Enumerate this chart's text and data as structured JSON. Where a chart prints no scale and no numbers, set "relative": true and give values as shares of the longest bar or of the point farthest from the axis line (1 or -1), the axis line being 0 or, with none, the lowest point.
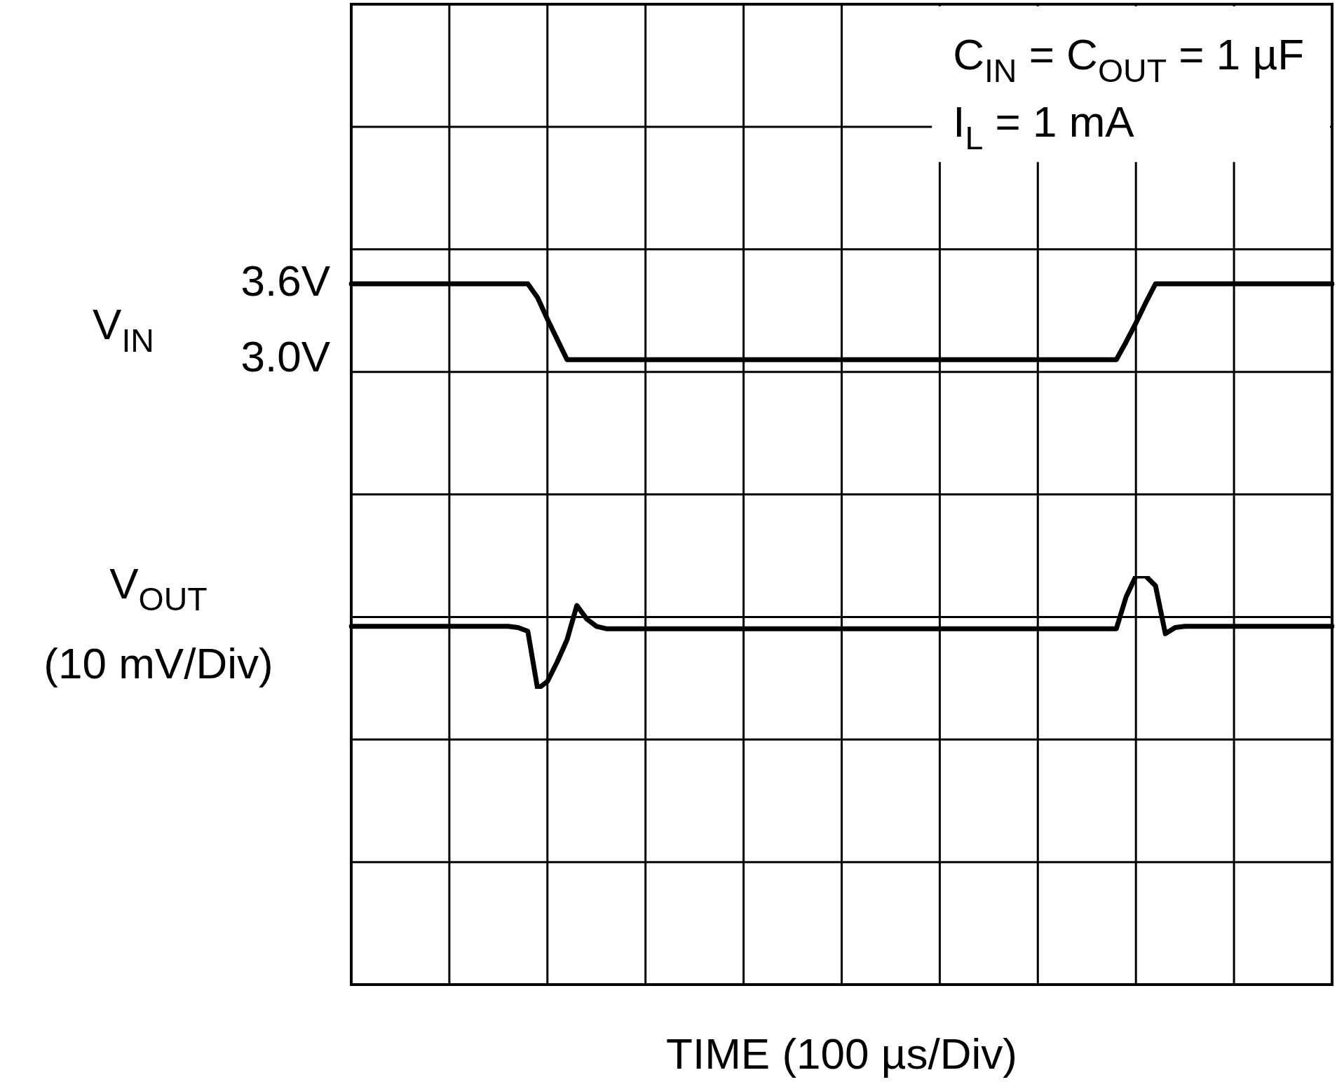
{
  "chart_data": [
    {
      "type": "line",
      "xlabel": "TIME (100 µs/Div)",
      "ylabel": "V$_{IN}$",
      "annotations": [
        "C$_{IN}$ = C$_{OUT}$ = 1 µF",
        "I$_{L}$ = 1 mA"
      ],
      "categories": [
        null,
        null,
        null,
        null,
        null,
        null,
        null,
        null,
        null,
        null,
        null,
        null,
        null,
        null,
        null,
        null,
        null,
        null,
        null,
        null,
        null,
        null,
        null,
        null,
        null,
        null,
        null,
        null,
        null,
        null,
        null,
        null,
        null,
        null,
        null,
        null,
        null,
        null,
        null,
        null,
        null,
        null,
        null,
        null,
        null,
        null,
        null,
        null,
        null,
        null,
        null,
        null,
        null,
        null,
        null,
        null,
        null,
        null,
        null,
        null,
        null,
        null,
        null,
        null,
        null,
        null,
        null,
        null,
        null,
        null,
        null,
        null,
        null,
        null,
        null,
        null,
        null,
        null,
        null,
        null,
        null,
        null,
        null,
        null,
        null,
        null,
        null,
        null,
        null,
        null,
        null,
        null,
        null,
        null,
        null,
        null,
        null,
        null,
        null,
        null,
        null
      ],
      "ylim": [
        -1.94,
        5.81
      ],
      "yticks": [
        {
          "value": 3.0,
          "label": "3.0V"
        },
        {
          "value": 3.6,
          "label": "3.6V"
        }
      ],
      "grid": true,
      "tick_labels": "y",
      "series": [
        {
          "color": "#000000",
          "values": [
            3.6,
            3.6,
            3.6,
            3.6,
            3.6,
            3.6,
            3.6,
            3.6,
            3.6,
            3.6,
            3.6,
            3.6,
            3.6,
            3.6,
            3.6,
            3.6,
            3.6,
            3.6,
            3.6,
            3.49,
            3.32,
            3.16,
            3.0,
            3.0,
            3.0,
            3.0,
            3.0,
            3.0,
            3.0,
            3.0,
            3.0,
            3.0,
            3.0,
            3.0,
            3.0,
            3.0,
            3.0,
            3.0,
            3.0,
            3.0,
            3.0,
            3.0,
            3.0,
            3.0,
            3.0,
            3.0,
            3.0,
            3.0,
            3.0,
            3.0,
            3.0,
            3.0,
            3.0,
            3.0,
            3.0,
            3.0,
            3.0,
            3.0,
            3.0,
            3.0,
            3.0,
            3.0,
            3.0,
            3.0,
            3.0,
            3.0,
            3.0,
            3.0,
            3.0,
            3.0,
            3.0,
            3.0,
            3.0,
            3.0,
            3.0,
            3.0,
            3.0,
            3.0,
            3.0,
            3.14,
            3.29,
            3.45,
            3.6,
            3.6,
            3.6,
            3.6,
            3.6,
            3.6,
            3.6,
            3.6,
            3.6,
            3.6,
            3.6,
            3.6,
            3.6,
            3.6,
            3.6,
            3.6,
            3.6,
            3.6,
            3.6
          ]
        }
      ]
    },
    {
      "type": "line",
      "ylabel": "V$_{OUT}$ (10 mV/Div)",
      "relative": true,
      "categories": [
        null,
        null,
        null,
        null,
        null,
        null,
        null,
        null,
        null,
        null,
        null,
        null,
        null,
        null,
        null,
        null,
        null,
        null,
        null,
        null,
        null,
        null,
        null,
        null,
        null,
        null,
        null,
        null,
        null,
        null,
        null,
        null,
        null,
        null,
        null,
        null,
        null,
        null,
        null,
        null,
        null,
        null,
        null,
        null,
        null,
        null,
        null,
        null,
        null,
        null,
        null,
        null,
        null,
        null,
        null,
        null,
        null,
        null,
        null,
        null,
        null,
        null,
        null,
        null,
        null,
        null,
        null,
        null,
        null,
        null,
        null,
        null,
        null,
        null,
        null,
        null,
        null,
        null,
        null,
        null,
        null,
        null,
        null,
        null,
        null,
        null,
        null,
        null,
        null,
        null,
        null,
        null,
        null,
        null,
        null,
        null,
        null,
        null,
        null,
        null,
        null
      ],
      "series": [
        {
          "color": "#000000",
          "values": [
            0.554,
            0.554,
            0.554,
            0.554,
            0.554,
            0.554,
            0.554,
            0.554,
            0.554,
            0.554,
            0.554,
            0.554,
            0.554,
            0.554,
            0.554,
            0.554,
            0.554,
            0.543,
            0.511,
            0,
            0.065,
            0.239,
            0.435,
            0.739,
            0.62,
            0.554,
            0.533,
            0.533,
            0.533,
            0.533,
            0.533,
            0.533,
            0.533,
            0.533,
            0.533,
            0.533,
            0.533,
            0.533,
            0.533,
            0.533,
            0.533,
            0.533,
            0.533,
            0.533,
            0.533,
            0.533,
            0.533,
            0.533,
            0.533,
            0.533,
            0.533,
            0.533,
            0.533,
            0.533,
            0.533,
            0.533,
            0.533,
            0.533,
            0.533,
            0.533,
            0.533,
            0.533,
            0.533,
            0.533,
            0.533,
            0.533,
            0.533,
            0.533,
            0.533,
            0.533,
            0.533,
            0.533,
            0.533,
            0.533,
            0.533,
            0.533,
            0.533,
            0.533,
            0.533,
            0.815,
            1,
            1,
            0.913,
            0.489,
            0.543,
            0.554,
            0.554,
            0.554,
            0.554,
            0.554,
            0.554,
            0.554,
            0.554,
            0.554,
            0.554,
            0.554,
            0.554,
            0.554,
            0.554,
            0.554,
            0.554
          ]
        }
      ]
    }
  ]
}
